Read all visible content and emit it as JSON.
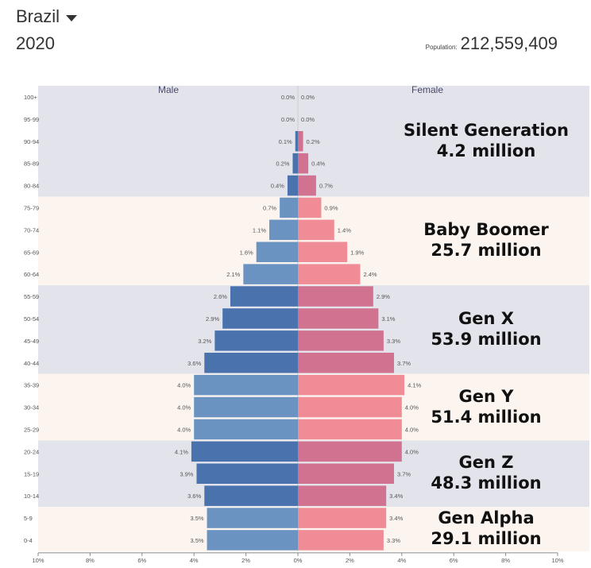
{
  "header": {
    "country": "Brazil",
    "year": "2020",
    "population_label": "Population:",
    "population_value": "212,559,409"
  },
  "colors": {
    "band_dark": "#e3e3ec",
    "band_light": "#fcf5ef",
    "male_dark": "#4a72ad",
    "male_light": "#6a93c2",
    "female_dark": "#d17390",
    "female_light": "#ef8c96"
  },
  "generations": [
    {
      "name": "Silent Generation",
      "total": "4.2 million",
      "from": "100+",
      "to": "80-84",
      "band": "dark"
    },
    {
      "name": "Baby Boomer",
      "total": "25.7 million",
      "from": "75-79",
      "to": "60-64",
      "band": "light"
    },
    {
      "name": "Gen X",
      "total": "53.9 million",
      "from": "55-59",
      "to": "40-44",
      "band": "dark"
    },
    {
      "name": "Gen Y",
      "total": "51.4 million",
      "from": "35-39",
      "to": "25-29",
      "band": "light"
    },
    {
      "name": "Gen Z",
      "total": "48.3 million",
      "from": "20-24",
      "to": "10-14",
      "band": "dark"
    },
    {
      "name": "Gen Alpha",
      "total": "29.1 million",
      "from": "5-9",
      "to": "0-4",
      "band": "light"
    }
  ],
  "chart_data": {
    "type": "bar",
    "orientation": "horizontal",
    "layout": "population-pyramid",
    "categories": [
      "100+",
      "95-99",
      "90-94",
      "85-89",
      "80-84",
      "75-79",
      "70-74",
      "65-69",
      "60-64",
      "55-59",
      "50-54",
      "45-49",
      "40-44",
      "35-39",
      "30-34",
      "25-29",
      "20-24",
      "15-19",
      "10-14",
      "5-9",
      "0-4"
    ],
    "series": [
      {
        "name": "Male",
        "values": [
          0.0,
          0.0,
          0.1,
          0.2,
          0.4,
          0.7,
          1.1,
          1.6,
          2.1,
          2.6,
          2.9,
          3.2,
          3.6,
          4.0,
          4.0,
          4.0,
          4.1,
          3.9,
          3.6,
          3.5,
          3.5
        ],
        "labels": [
          "0.0%",
          "0.0%",
          "0.1%",
          "0.2%",
          "0.4%",
          "0.7%",
          "1.1%",
          "1.6%",
          "2.1%",
          "2.6%",
          "2.9%",
          "3.2%",
          "3.6%",
          "4.0%",
          "4.0%",
          "4.0%",
          "4.1%",
          "3.9%",
          "3.6%",
          "3.5%",
          "3.5%"
        ]
      },
      {
        "name": "Female",
        "values": [
          0.0,
          0.0,
          0.2,
          0.4,
          0.7,
          0.9,
          1.4,
          1.9,
          2.4,
          2.9,
          3.1,
          3.3,
          3.7,
          4.1,
          4.0,
          4.0,
          4.0,
          3.7,
          3.4,
          3.4,
          3.3
        ],
        "labels": [
          "0.0%",
          "0.0%",
          "0.2%",
          "0.4%",
          "0.7%",
          "0.9%",
          "1.4%",
          "1.9%",
          "2.4%",
          "2.9%",
          "3.1%",
          "3.3%",
          "3.7%",
          "4.1%",
          "4.0%",
          "4.0%",
          "4.0%",
          "3.7%",
          "3.4%",
          "3.4%",
          "3.3%"
        ]
      }
    ],
    "xticks": [
      "10%",
      "8%",
      "6%",
      "4%",
      "2%",
      "0%",
      "2%",
      "4%",
      "6%",
      "8%",
      "10%"
    ],
    "xlim": [
      -10,
      10
    ],
    "grid": false
  }
}
